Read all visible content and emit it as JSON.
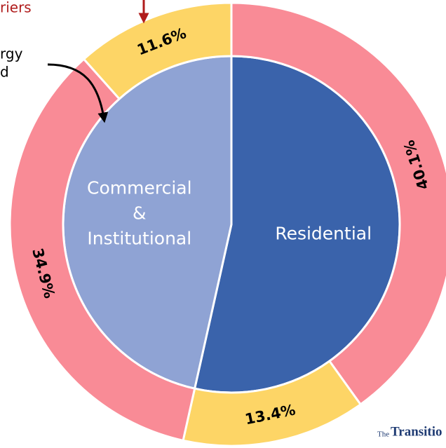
{
  "chart_data": {
    "type": "donut",
    "outer": {
      "values": [
        40.1,
        13.4,
        34.9,
        11.6
      ],
      "value_labels": [
        "40.1%",
        "13.4%",
        "34.9%",
        "11.6%"
      ],
      "colors": [
        "#f98b96",
        "#fdd566",
        "#f98b96",
        "#fdd566"
      ]
    },
    "inner": {
      "labels": [
        [
          "Residential"
        ],
        [
          "Commercial",
          "&",
          "Institutional"
        ]
      ],
      "colors": [
        "#3a63ab",
        "#8fa3d4"
      ]
    },
    "annotations": [
      "riers",
      "rgy",
      "d",
      "The",
      "Transitio"
    ]
  }
}
